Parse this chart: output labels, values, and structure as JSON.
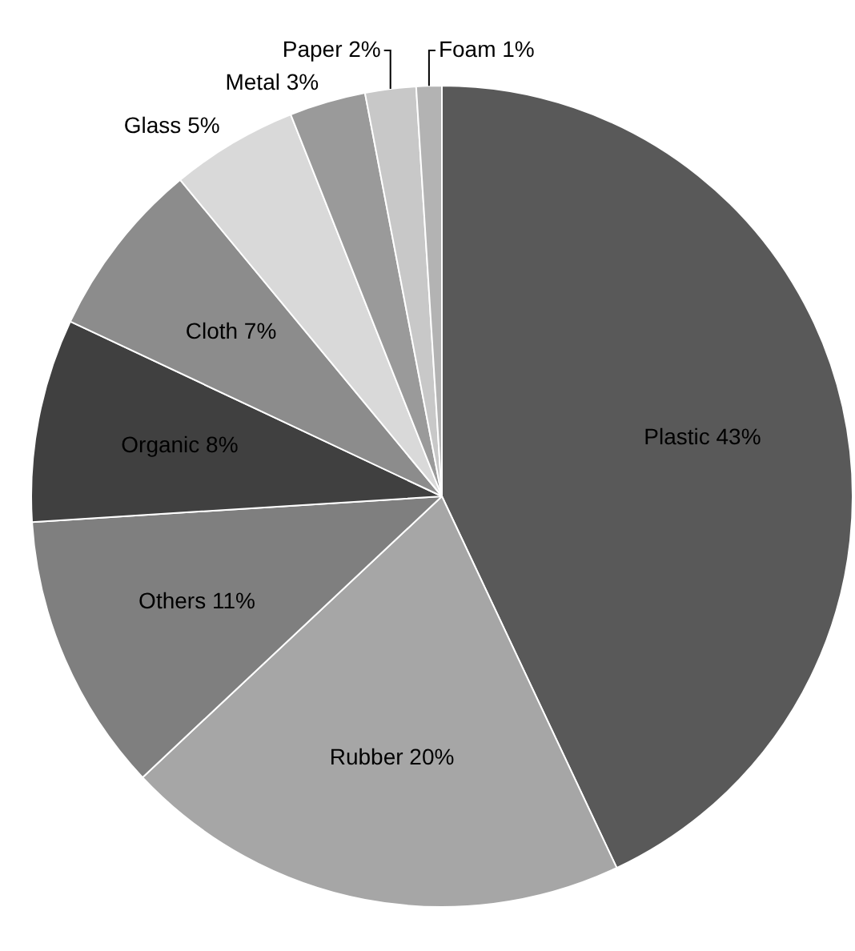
{
  "chart_data": {
    "type": "pie",
    "categories": [
      "Plastic",
      "Rubber",
      "Others",
      "Organic",
      "Cloth",
      "Glass",
      "Metal",
      "Paper",
      "Foam"
    ],
    "values": [
      43,
      20,
      11,
      8,
      7,
      5,
      3,
      2,
      1
    ],
    "value_labels": [
      "43%",
      "20%",
      "11%",
      "8%",
      "7%",
      "5%",
      "3%",
      "2%",
      "1%"
    ],
    "colors": [
      "#595959",
      "#a6a6a6",
      "#7f7f7f",
      "#404040",
      "#8c8c8c",
      "#d9d9d9",
      "#9a9a9a",
      "#c8c8c8",
      "#b3b3b3"
    ],
    "legend": false
  }
}
